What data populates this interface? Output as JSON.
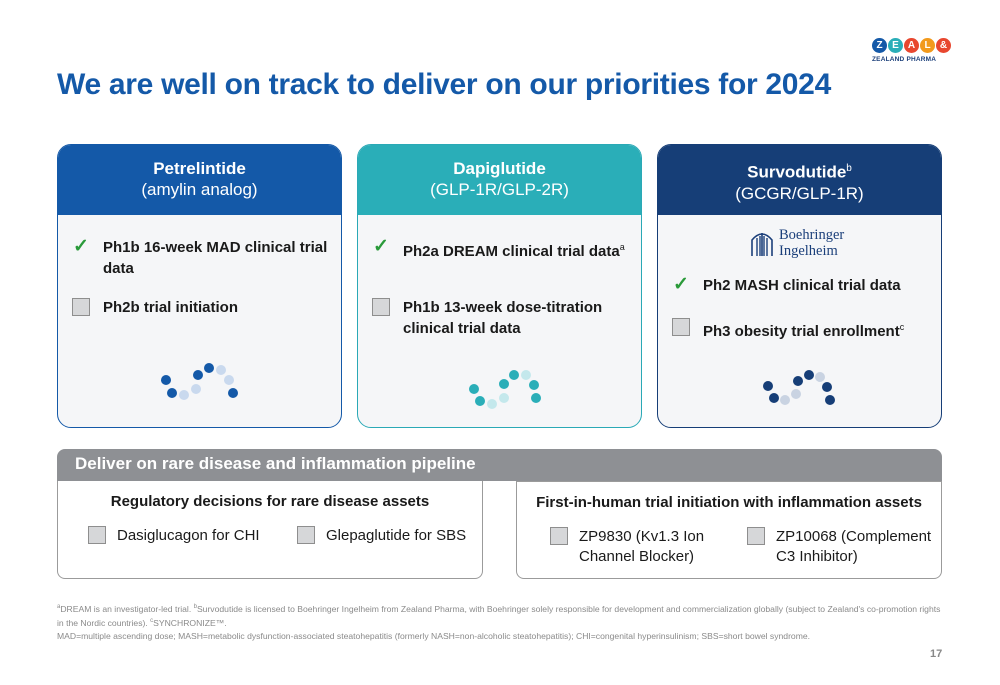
{
  "logo": {
    "letters": [
      "Z",
      "E",
      "A",
      "L",
      "&"
    ],
    "colors": [
      "#1459a8",
      "#2aaeb8",
      "#e8472f",
      "#f29a1c",
      "#e8472f"
    ],
    "subtitle": "ZEALAND PHARMA"
  },
  "title": "We are well on track to deliver on our priorities for 2024",
  "cards": [
    {
      "name": "Petrelintide",
      "name_sup": "",
      "class": "(amylin analog)",
      "color": "#1459a8",
      "items": [
        {
          "status": "done",
          "text": "Ph1b 16-week MAD clinical trial data",
          "sup": ""
        },
        {
          "status": "pending",
          "text": "Ph2b trial initiation",
          "sup": ""
        }
      ]
    },
    {
      "name": "Dapiglutide",
      "name_sup": "",
      "class": "(GLP-1R/GLP-2R)",
      "color": "#2aaeb8",
      "items": [
        {
          "status": "done",
          "text": "Ph2a DREAM clinical trial data",
          "sup": "a"
        },
        {
          "status": "pending",
          "text": "Ph1b 13-week dose-titration clinical trial data",
          "sup": ""
        }
      ]
    },
    {
      "name": "Survodutide",
      "name_sup": "b",
      "class": "(GCGR/GLP-1R)",
      "color": "#163e77",
      "partner_logo": {
        "line1": "Boehringer",
        "line2": "Ingelheim"
      },
      "items": [
        {
          "status": "done",
          "text": "Ph2 MASH clinical trial data",
          "sup": ""
        },
        {
          "status": "pending",
          "text": "Ph3 obesity trial enrollment",
          "sup": "c"
        }
      ]
    }
  ],
  "rare": {
    "banner": "Deliver on rare disease and inflammation pipeline",
    "left": {
      "title": "Regulatory decisions for rare disease assets",
      "items": [
        "Dasiglucagon for CHI",
        "Glepaglutide for SBS"
      ]
    },
    "right": {
      "title": "First-in-human trial initiation with inflammation assets",
      "items": [
        "ZP9830 (Kv1.3 Ion Channel Blocker)",
        "ZP10068 (Complement C3 Inhibitor)"
      ]
    }
  },
  "footnotes": {
    "line1_a": "a",
    "line1_a_text": "DREAM is an investigator-led trial. ",
    "line1_b": "b",
    "line1_b_text": "Survodutide is licensed to Boehringer Ingelheim from Zealand Pharma, with Boehringer solely responsible for development and commercialization globally (subject to Zealand's co-promotion rights in the Nordic countries). ",
    "line1_c": "c",
    "line1_c_text": "SYNCHRONIZE™.",
    "line2": "MAD=multiple ascending dose; MASH=metabolic dysfunction-associated steatohepatitis (formerly NASH=non-alcoholic steatohepatitis); CHI=congenital hyperinsulinism; SBS=short bowel syndrome."
  },
  "page_number": "17"
}
